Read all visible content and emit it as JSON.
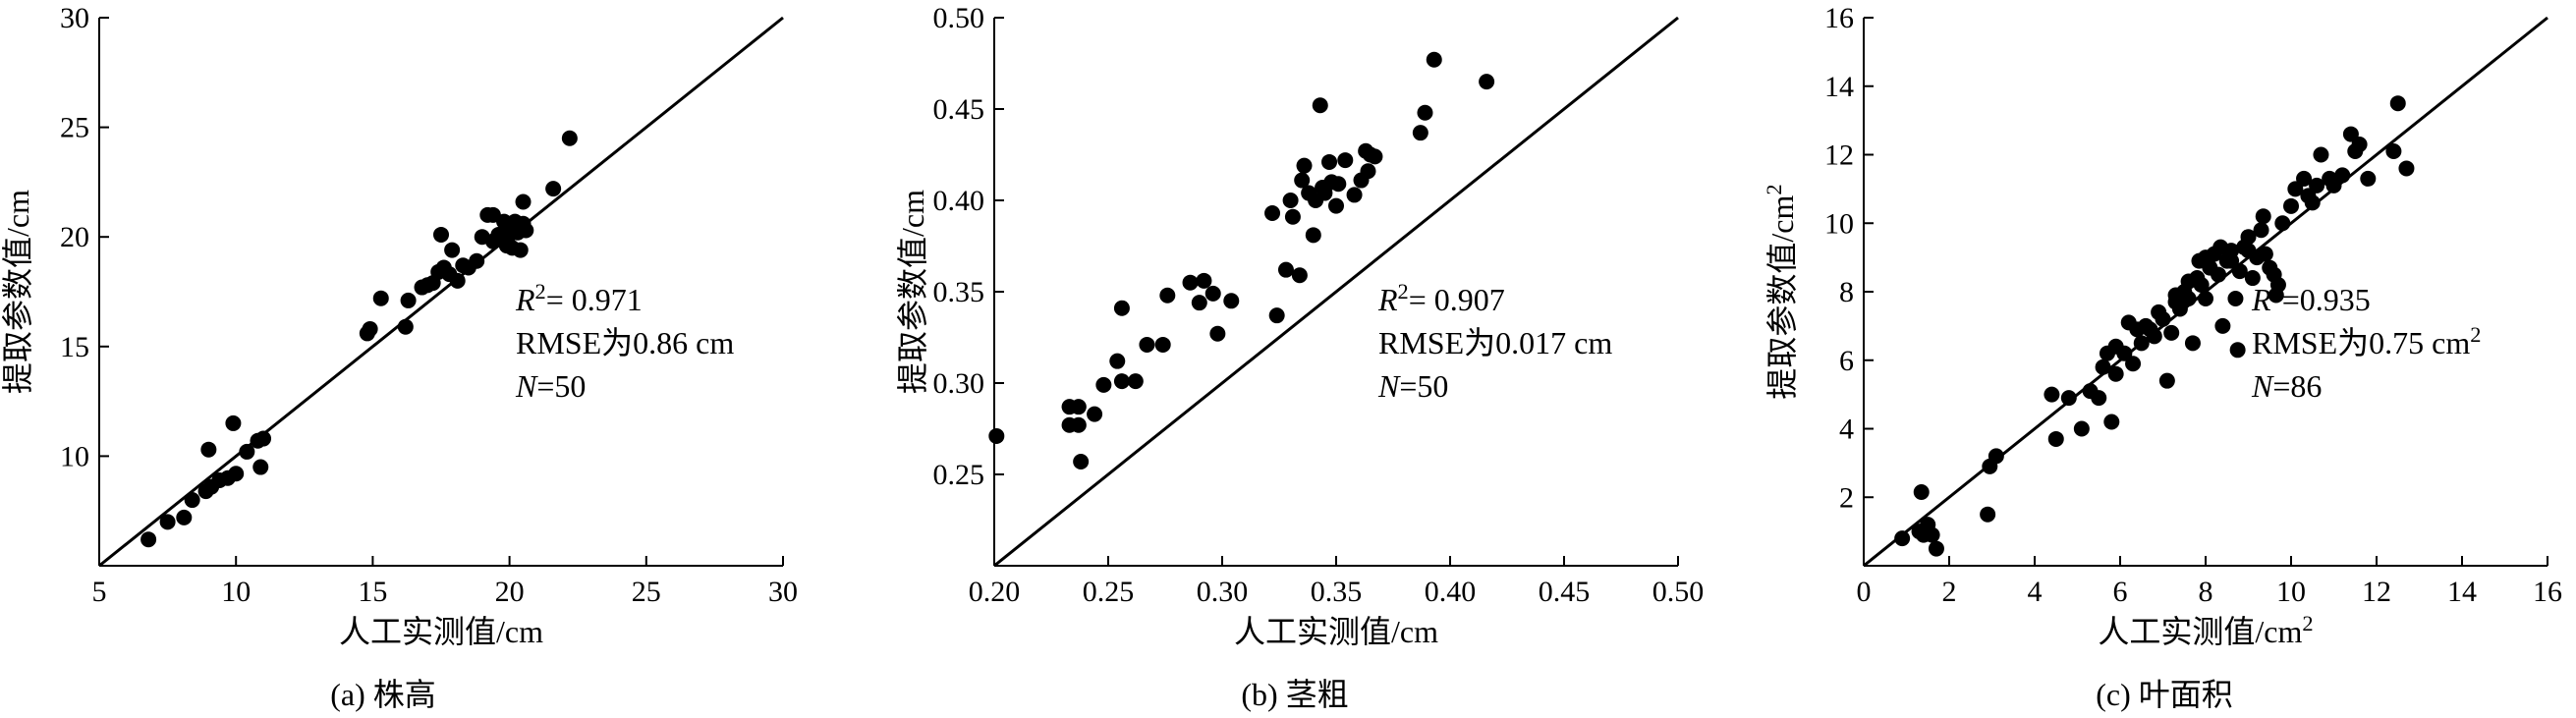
{
  "chart_data": [
    {
      "type": "scatter",
      "caption": "(a) 株高",
      "xlabel": "人工实测值/cm",
      "ylabel": "提取参数值/cm",
      "xlim": [
        5,
        30
      ],
      "ylim": [
        5,
        30
      ],
      "xticks": [
        "5",
        "10",
        "15",
        "20",
        "25",
        "30"
      ],
      "yticks": [
        "10",
        "15",
        "20",
        "25",
        "30"
      ],
      "fit_line": [
        [
          5,
          5
        ],
        [
          30,
          30
        ]
      ],
      "annotation": {
        "r2": "R²= 0.971",
        "rmse": "RMSE为0.86 cm",
        "n": "N=50"
      },
      "points": [
        [
          6.8,
          6.2
        ],
        [
          7.5,
          7.0
        ],
        [
          8.1,
          7.2
        ],
        [
          8.4,
          8.0
        ],
        [
          8.9,
          8.4
        ],
        [
          9.1,
          8.6
        ],
        [
          9.0,
          10.3
        ],
        [
          9.4,
          8.9
        ],
        [
          9.7,
          9.0
        ],
        [
          10.0,
          9.2
        ],
        [
          9.9,
          11.5
        ],
        [
          10.4,
          10.2
        ],
        [
          10.8,
          10.7
        ],
        [
          11.0,
          10.8
        ],
        [
          10.9,
          9.5
        ],
        [
          14.8,
          15.6
        ],
        [
          14.9,
          15.8
        ],
        [
          15.3,
          17.2
        ],
        [
          16.2,
          15.9
        ],
        [
          16.3,
          17.1
        ],
        [
          17.0,
          17.8
        ],
        [
          17.2,
          17.9
        ],
        [
          17.4,
          18.4
        ],
        [
          17.6,
          18.6
        ],
        [
          17.5,
          20.1
        ],
        [
          17.9,
          19.4
        ],
        [
          18.1,
          18.0
        ],
        [
          18.3,
          18.7
        ],
        [
          18.8,
          18.9
        ],
        [
          19.0,
          20.0
        ],
        [
          19.2,
          21.0
        ],
        [
          19.4,
          19.8
        ],
        [
          19.6,
          20.1
        ],
        [
          19.8,
          20.7
        ],
        [
          20.0,
          20.1
        ],
        [
          20.1,
          19.5
        ],
        [
          20.2,
          20.7
        ],
        [
          20.4,
          19.4
        ],
        [
          20.5,
          20.6
        ],
        [
          20.6,
          20.3
        ],
        [
          20.5,
          21.6
        ],
        [
          21.6,
          22.2
        ],
        [
          22.2,
          24.5
        ],
        [
          18.5,
          18.6
        ],
        [
          19.4,
          21.0
        ],
        [
          20.0,
          20.5
        ],
        [
          17.8,
          18.3
        ],
        [
          16.8,
          17.7
        ],
        [
          20.3,
          20.2
        ],
        [
          19.9,
          19.6
        ]
      ]
    },
    {
      "type": "scatter",
      "caption": "(b) 茎粗",
      "xlabel": "人工实测值/cm",
      "ylabel": "提取参数值/cm",
      "xlim": [
        0.2,
        0.5
      ],
      "ylim": [
        0.2,
        0.5
      ],
      "xticks": [
        "0.20",
        "0.25",
        "0.30",
        "0.35",
        "0.40",
        "0.45",
        "0.50"
      ],
      "yticks": [
        "0.25",
        "0.30",
        "0.35",
        "0.40",
        "0.45",
        "0.50"
      ],
      "fit_line": [
        [
          0.2,
          0.2
        ],
        [
          0.5,
          0.5
        ]
      ],
      "annotation": {
        "r2": "R²= 0.907",
        "rmse": "RMSE为0.017 cm",
        "n": "N=50"
      },
      "points": [
        [
          0.201,
          0.271
        ],
        [
          0.233,
          0.287
        ],
        [
          0.233,
          0.277
        ],
        [
          0.237,
          0.287
        ],
        [
          0.238,
          0.257
        ],
        [
          0.237,
          0.277
        ],
        [
          0.244,
          0.283
        ],
        [
          0.248,
          0.299
        ],
        [
          0.254,
          0.312
        ],
        [
          0.256,
          0.301
        ],
        [
          0.256,
          0.341
        ],
        [
          0.262,
          0.301
        ],
        [
          0.267,
          0.321
        ],
        [
          0.274,
          0.321
        ],
        [
          0.276,
          0.348
        ],
        [
          0.286,
          0.355
        ],
        [
          0.29,
          0.344
        ],
        [
          0.292,
          0.356
        ],
        [
          0.296,
          0.349
        ],
        [
          0.298,
          0.327
        ],
        [
          0.304,
          0.345
        ],
        [
          0.322,
          0.393
        ],
        [
          0.324,
          0.337
        ],
        [
          0.328,
          0.362
        ],
        [
          0.33,
          0.4
        ],
        [
          0.331,
          0.391
        ],
        [
          0.334,
          0.359
        ],
        [
          0.335,
          0.411
        ],
        [
          0.336,
          0.419
        ],
        [
          0.338,
          0.404
        ],
        [
          0.34,
          0.381
        ],
        [
          0.341,
          0.4
        ],
        [
          0.343,
          0.452
        ],
        [
          0.344,
          0.407
        ],
        [
          0.345,
          0.404
        ],
        [
          0.347,
          0.421
        ],
        [
          0.348,
          0.41
        ],
        [
          0.35,
          0.397
        ],
        [
          0.351,
          0.409
        ],
        [
          0.354,
          0.422
        ],
        [
          0.358,
          0.403
        ],
        [
          0.361,
          0.411
        ],
        [
          0.363,
          0.427
        ],
        [
          0.364,
          0.416
        ],
        [
          0.365,
          0.425
        ],
        [
          0.367,
          0.424
        ],
        [
          0.387,
          0.437
        ],
        [
          0.389,
          0.448
        ],
        [
          0.393,
          0.477
        ],
        [
          0.416,
          0.465
        ]
      ]
    },
    {
      "type": "scatter",
      "caption": "(c) 叶面积",
      "xlabel": "人工实测值/cm²",
      "ylabel": "提取参数值/cm²",
      "xlim": [
        0,
        16
      ],
      "ylim": [
        0,
        16
      ],
      "xticks": [
        "0",
        "2",
        "4",
        "6",
        "8",
        "10",
        "12",
        "14",
        "16"
      ],
      "yticks": [
        "2",
        "4",
        "6",
        "8",
        "10",
        "12",
        "14",
        "16"
      ],
      "fit_line": [
        [
          0,
          0
        ],
        [
          16,
          16
        ]
      ],
      "annotation": {
        "r2": "R²=0.935",
        "rmse": "RMSE为0.75 cm²",
        "n": "N=86"
      },
      "points": [
        [
          0.9,
          0.8
        ],
        [
          1.3,
          1.0
        ],
        [
          1.35,
          2.15
        ],
        [
          1.4,
          0.9
        ],
        [
          1.5,
          1.2
        ],
        [
          1.6,
          0.9
        ],
        [
          1.7,
          0.5
        ],
        [
          2.9,
          1.5
        ],
        [
          2.95,
          2.9
        ],
        [
          3.1,
          3.2
        ],
        [
          4.4,
          5.0
        ],
        [
          4.5,
          3.7
        ],
        [
          4.8,
          4.9
        ],
        [
          5.1,
          4.0
        ],
        [
          5.3,
          5.1
        ],
        [
          5.5,
          4.9
        ],
        [
          5.6,
          5.8
        ],
        [
          5.7,
          6.2
        ],
        [
          5.8,
          4.2
        ],
        [
          5.9,
          5.6
        ],
        [
          6.1,
          6.2
        ],
        [
          6.2,
          7.1
        ],
        [
          6.3,
          5.9
        ],
        [
          6.4,
          6.9
        ],
        [
          6.5,
          6.5
        ],
        [
          6.6,
          7.0
        ],
        [
          6.8,
          6.7
        ],
        [
          6.9,
          7.4
        ],
        [
          7.0,
          7.2
        ],
        [
          7.1,
          5.4
        ],
        [
          7.2,
          6.8
        ],
        [
          7.3,
          7.7
        ],
        [
          7.4,
          7.5
        ],
        [
          7.5,
          8.0
        ],
        [
          7.6,
          7.8
        ],
        [
          7.7,
          6.5
        ],
        [
          7.8,
          8.4
        ],
        [
          7.85,
          8.9
        ],
        [
          7.9,
          8.2
        ],
        [
          8.0,
          7.8
        ],
        [
          8.1,
          8.7
        ],
        [
          8.2,
          9.1
        ],
        [
          8.3,
          8.5
        ],
        [
          8.35,
          9.3
        ],
        [
          8.4,
          7.0
        ],
        [
          8.5,
          8.9
        ],
        [
          8.6,
          9.2
        ],
        [
          8.7,
          7.8
        ],
        [
          8.75,
          6.3
        ],
        [
          8.8,
          8.6
        ],
        [
          8.9,
          9.3
        ],
        [
          9.0,
          9.6
        ],
        [
          9.1,
          8.4
        ],
        [
          9.2,
          9.0
        ],
        [
          9.3,
          9.8
        ],
        [
          9.35,
          10.2
        ],
        [
          9.4,
          9.1
        ],
        [
          9.5,
          8.7
        ],
        [
          9.6,
          8.5
        ],
        [
          9.65,
          7.9
        ],
        [
          9.7,
          8.2
        ],
        [
          9.8,
          10.0
        ],
        [
          10.0,
          10.5
        ],
        [
          10.1,
          11.0
        ],
        [
          10.3,
          11.3
        ],
        [
          10.4,
          10.8
        ],
        [
          10.5,
          10.6
        ],
        [
          10.6,
          11.1
        ],
        [
          10.7,
          12.0
        ],
        [
          10.9,
          11.3
        ],
        [
          11.0,
          11.1
        ],
        [
          11.2,
          11.4
        ],
        [
          11.4,
          12.6
        ],
        [
          11.5,
          12.1
        ],
        [
          11.6,
          12.3
        ],
        [
          11.8,
          11.3
        ],
        [
          12.4,
          12.1
        ],
        [
          12.5,
          13.5
        ],
        [
          12.7,
          11.6
        ],
        [
          8.0,
          9.0
        ],
        [
          7.3,
          7.9
        ],
        [
          6.7,
          6.9
        ],
        [
          8.6,
          8.9
        ],
        [
          9.0,
          9.2
        ],
        [
          7.6,
          8.3
        ],
        [
          5.9,
          6.4
        ]
      ]
    }
  ]
}
